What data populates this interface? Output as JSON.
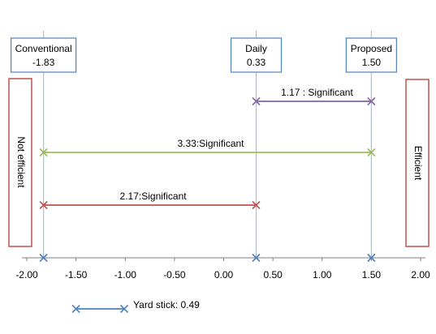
{
  "chart_data": {
    "type": "scatter",
    "xlim": [
      -2.0,
      2.0
    ],
    "x_ticks": [
      "-2.00",
      "-1.50",
      "-1.00",
      "-0.50",
      "0.00",
      "0.50",
      "1.00",
      "1.50",
      "2.00"
    ],
    "methods": [
      {
        "name": "Conventional",
        "value_label": "-1.83",
        "x": -1.83
      },
      {
        "name": "Daily",
        "value_label": "0.33",
        "x": 0.33
      },
      {
        "name": "Proposed",
        "value_label": "1.50",
        "x": 1.5
      }
    ],
    "comparisons": [
      {
        "label": "1.17 : Significant",
        "x1": 0.33,
        "x2": 1.5,
        "color": "#8064a2"
      },
      {
        "label": "3.33:Significant",
        "x1": -1.83,
        "x2": 1.5,
        "color": "#9bbb59"
      },
      {
        "label": "2.17:Significant",
        "x1": -1.83,
        "x2": 0.33,
        "color": "#c0504d"
      }
    ],
    "side_labels": {
      "left": "Not efficient",
      "right": "Efficient"
    },
    "yardstick": {
      "label": "Yard stick: 0.49",
      "x1": -1.5,
      "x2": -1.01,
      "color": "#4f81bd"
    },
    "colors": {
      "method_line": "#9dc3e6",
      "axis_marker": "#4f81bd",
      "side_box": "#c0504d",
      "label_box": "#4f81bd",
      "axis": "#808080"
    }
  }
}
